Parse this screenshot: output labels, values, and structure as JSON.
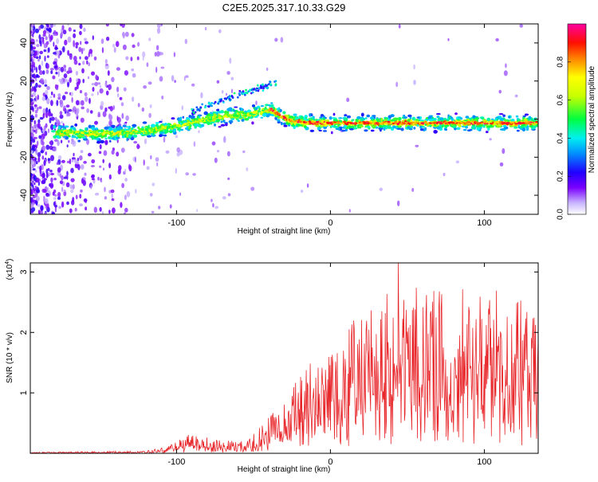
{
  "title": "C2E5.2025.317.10.33.G29",
  "chart_data": [
    {
      "type": "heatmap",
      "name": "spectrogram",
      "xlabel": "Height of straight line (km)",
      "ylabel": "Frequency (Hz)",
      "xlim": [
        -195,
        135
      ],
      "ylim": [
        -50,
        50
      ],
      "xticks": [
        -100,
        0,
        100
      ],
      "yticks": [
        -40,
        -20,
        0,
        20,
        40
      ],
      "colorbar": {
        "label": "Normalized spectral amplitude",
        "range": [
          0,
          1
        ],
        "ticks": [
          "0.0",
          "0.2",
          "0.4",
          "0.6",
          "0.8"
        ]
      },
      "ridge": [
        {
          "x": -170,
          "y": -7
        },
        {
          "x": -150,
          "y": -8
        },
        {
          "x": -130,
          "y": -7
        },
        {
          "x": -110,
          "y": -5
        },
        {
          "x": -95,
          "y": -3
        },
        {
          "x": -80,
          "y": 0
        },
        {
          "x": -65,
          "y": 2
        },
        {
          "x": -55,
          "y": 2
        },
        {
          "x": -45,
          "y": 4
        },
        {
          "x": -38,
          "y": 5
        },
        {
          "x": -33,
          "y": 2
        },
        {
          "x": -25,
          "y": -1
        },
        {
          "x": -10,
          "y": -2
        },
        {
          "x": 20,
          "y": -2
        },
        {
          "x": 60,
          "y": -2
        },
        {
          "x": 100,
          "y": -2
        },
        {
          "x": 135,
          "y": -2
        }
      ]
    },
    {
      "type": "line",
      "name": "snr",
      "xlabel": "Height of straight line (km)",
      "ylabel": "SNR (10 * v/v)",
      "y_scale_note": "(x10",
      "y_scale_exp": "4",
      "xlim": [
        -195,
        135
      ],
      "ylim": [
        0,
        3.15
      ],
      "xticks": [
        -100,
        0,
        100
      ],
      "yticks": [
        1,
        2,
        3
      ],
      "color": "#e8262a",
      "envelope": [
        {
          "x": -195,
          "v": 0.02
        },
        {
          "x": -120,
          "v": 0.04
        },
        {
          "x": -105,
          "v": 0.12
        },
        {
          "x": -90,
          "v": 0.35
        },
        {
          "x": -70,
          "v": 0.22
        },
        {
          "x": -55,
          "v": 0.2
        },
        {
          "x": -45,
          "v": 0.45
        },
        {
          "x": -30,
          "v": 0.9
        },
        {
          "x": -15,
          "v": 1.5
        },
        {
          "x": 0,
          "v": 1.9
        },
        {
          "x": 20,
          "v": 2.3
        },
        {
          "x": 45,
          "v": 2.8
        },
        {
          "x": 70,
          "v": 2.7
        },
        {
          "x": 100,
          "v": 2.75
        },
        {
          "x": 120,
          "v": 2.6
        },
        {
          "x": 135,
          "v": 2.3
        }
      ],
      "peak": {
        "x": 44,
        "v": 3.15
      }
    }
  ]
}
